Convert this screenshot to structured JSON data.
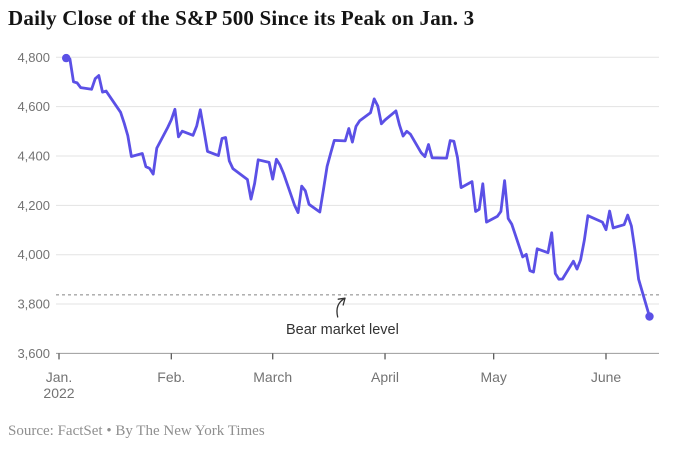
{
  "header": {
    "title": "Daily Close of the S&P 500 Since its Peak on Jan. 3"
  },
  "footer": {
    "source": "Source: FactSet • By The New York Times"
  },
  "chart_data": {
    "type": "line",
    "title": "Daily Close of the S&P 500 Since its Peak on Jan. 3",
    "series": [
      {
        "name": "S&P 500 daily close",
        "color": "#5b50e6",
        "points": [
          [
            "2022-01-03",
            4796.56
          ],
          [
            "2022-01-04",
            4793.54
          ],
          [
            "2022-01-05",
            4700.58
          ],
          [
            "2022-01-06",
            4696.05
          ],
          [
            "2022-01-07",
            4677.03
          ],
          [
            "2022-01-10",
            4670.29
          ],
          [
            "2022-01-11",
            4713.07
          ],
          [
            "2022-01-12",
            4726.35
          ],
          [
            "2022-01-13",
            4659.03
          ],
          [
            "2022-01-14",
            4662.85
          ],
          [
            "2022-01-18",
            4577.11
          ],
          [
            "2022-01-19",
            4532.76
          ],
          [
            "2022-01-20",
            4482.73
          ],
          [
            "2022-01-21",
            4397.94
          ],
          [
            "2022-01-24",
            4410.13
          ],
          [
            "2022-01-25",
            4356.45
          ],
          [
            "2022-01-26",
            4349.93
          ],
          [
            "2022-01-27",
            4326.51
          ],
          [
            "2022-01-28",
            4431.85
          ],
          [
            "2022-01-31",
            4515.55
          ],
          [
            "2022-02-01",
            4546.54
          ],
          [
            "2022-02-02",
            4589.38
          ],
          [
            "2022-02-03",
            4477.44
          ],
          [
            "2022-02-04",
            4500.53
          ],
          [
            "2022-02-07",
            4483.87
          ],
          [
            "2022-02-08",
            4521.54
          ],
          [
            "2022-02-09",
            4587.18
          ],
          [
            "2022-02-10",
            4504.08
          ],
          [
            "2022-02-11",
            4418.64
          ],
          [
            "2022-02-14",
            4401.67
          ],
          [
            "2022-02-15",
            4471.07
          ],
          [
            "2022-02-16",
            4475.01
          ],
          [
            "2022-02-17",
            4380.26
          ],
          [
            "2022-02-18",
            4348.87
          ],
          [
            "2022-02-22",
            4304.76
          ],
          [
            "2022-02-23",
            4225.5
          ],
          [
            "2022-02-24",
            4288.7
          ],
          [
            "2022-02-25",
            4384.65
          ],
          [
            "2022-02-28",
            4373.94
          ],
          [
            "2022-03-01",
            4306.26
          ],
          [
            "2022-03-02",
            4386.54
          ],
          [
            "2022-03-03",
            4363.49
          ],
          [
            "2022-03-04",
            4328.87
          ],
          [
            "2022-03-07",
            4201.09
          ],
          [
            "2022-03-08",
            4170.7
          ],
          [
            "2022-03-09",
            4277.88
          ],
          [
            "2022-03-10",
            4259.52
          ],
          [
            "2022-03-11",
            4204.31
          ],
          [
            "2022-03-14",
            4173.11
          ],
          [
            "2022-03-15",
            4262.45
          ],
          [
            "2022-03-16",
            4357.86
          ],
          [
            "2022-03-17",
            4411.67
          ],
          [
            "2022-03-18",
            4463.12
          ],
          [
            "2022-03-21",
            4461.18
          ],
          [
            "2022-03-22",
            4511.61
          ],
          [
            "2022-03-23",
            4456.24
          ],
          [
            "2022-03-24",
            4520.16
          ],
          [
            "2022-03-25",
            4543.06
          ],
          [
            "2022-03-28",
            4575.52
          ],
          [
            "2022-03-29",
            4631.6
          ],
          [
            "2022-03-30",
            4602.45
          ],
          [
            "2022-03-31",
            4530.41
          ],
          [
            "2022-04-01",
            4545.86
          ],
          [
            "2022-04-04",
            4582.64
          ],
          [
            "2022-04-05",
            4525.12
          ],
          [
            "2022-04-06",
            4481.15
          ],
          [
            "2022-04-07",
            4500.21
          ],
          [
            "2022-04-08",
            4488.28
          ],
          [
            "2022-04-11",
            4412.53
          ],
          [
            "2022-04-12",
            4397.45
          ],
          [
            "2022-04-13",
            4446.59
          ],
          [
            "2022-04-14",
            4392.59
          ],
          [
            "2022-04-18",
            4391.69
          ],
          [
            "2022-04-19",
            4462.21
          ],
          [
            "2022-04-20",
            4459.45
          ],
          [
            "2022-04-21",
            4393.66
          ],
          [
            "2022-04-22",
            4271.78
          ],
          [
            "2022-04-25",
            4296.12
          ],
          [
            "2022-04-26",
            4175.2
          ],
          [
            "2022-04-27",
            4183.96
          ],
          [
            "2022-04-28",
            4287.5
          ],
          [
            "2022-04-29",
            4131.93
          ],
          [
            "2022-05-02",
            4155.38
          ],
          [
            "2022-05-03",
            4175.48
          ],
          [
            "2022-05-04",
            4300.17
          ],
          [
            "2022-05-05",
            4146.87
          ],
          [
            "2022-05-06",
            4123.34
          ],
          [
            "2022-05-09",
            3991.24
          ],
          [
            "2022-05-10",
            4001.05
          ],
          [
            "2022-05-11",
            3935.18
          ],
          [
            "2022-05-12",
            3930.08
          ],
          [
            "2022-05-13",
            4023.89
          ],
          [
            "2022-05-16",
            4008.01
          ],
          [
            "2022-05-17",
            4088.85
          ],
          [
            "2022-05-18",
            3923.68
          ],
          [
            "2022-05-19",
            3900.79
          ],
          [
            "2022-05-20",
            3901.36
          ],
          [
            "2022-05-23",
            3973.75
          ],
          [
            "2022-05-24",
            3941.48
          ],
          [
            "2022-05-25",
            3978.73
          ],
          [
            "2022-05-26",
            4057.84
          ],
          [
            "2022-05-27",
            4158.24
          ],
          [
            "2022-05-31",
            4132.15
          ],
          [
            "2022-06-01",
            4101.23
          ],
          [
            "2022-06-02",
            4176.82
          ],
          [
            "2022-06-03",
            4108.54
          ],
          [
            "2022-06-06",
            4121.43
          ],
          [
            "2022-06-07",
            4160.68
          ],
          [
            "2022-06-08",
            4115.77
          ],
          [
            "2022-06-09",
            4017.82
          ],
          [
            "2022-06-10",
            3900.86
          ],
          [
            "2022-06-13",
            3749.63
          ]
        ]
      }
    ],
    "y_axis": {
      "min": 3600,
      "max": 4800,
      "tick_step": 200,
      "grid": true,
      "ticks": [
        {
          "value": 4800,
          "label": "4,800"
        },
        {
          "value": 4600,
          "label": "4,600"
        },
        {
          "value": 4400,
          "label": "4,400"
        },
        {
          "value": 4200,
          "label": "4,200"
        },
        {
          "value": 4000,
          "label": "4,000"
        },
        {
          "value": 3800,
          "label": "3,800"
        },
        {
          "value": 3600,
          "label": "3,600"
        }
      ]
    },
    "x_axis": {
      "ticks": [
        {
          "date": "2022-01-01",
          "label": "Jan.",
          "sublabel": "2022"
        },
        {
          "date": "2022-02-01",
          "label": "Feb."
        },
        {
          "date": "2022-03-01",
          "label": "March"
        },
        {
          "date": "2022-04-01",
          "label": "April"
        },
        {
          "date": "2022-05-01",
          "label": "May"
        },
        {
          "date": "2022-06-01",
          "label": "June"
        }
      ]
    },
    "reference_line": {
      "value": 3837.25,
      "label": "Bear market level",
      "style": "dashed",
      "color": "#a6a6a6"
    },
    "endpoint_dots": true,
    "legend": "none",
    "colors": {
      "line": "#5b50e6",
      "grid": "#e3e3e3",
      "axis": "#9b9b9b",
      "tick": "#4d4d4d",
      "label": "#737373"
    }
  }
}
